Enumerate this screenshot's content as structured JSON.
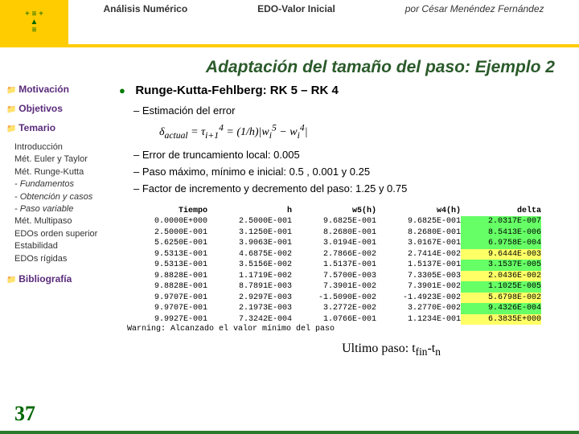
{
  "header": {
    "course": "Análisis Numérico",
    "topic": "EDO-Valor Inicial",
    "author": "por César Menéndez Fernández"
  },
  "title": "Adaptación del tamaño del paso: Ejemplo 2",
  "sidebar": {
    "motivacion": "Motivación",
    "objetivos": "Objetivos",
    "temario": "Temario",
    "sub": {
      "intro": "Introducción",
      "euler": "Mét. Euler y Taylor",
      "rk": "Mét. Runge-Kutta",
      "fund": "- Fundamentos",
      "obt": "- Obtención y casos",
      "paso": "- Paso variable",
      "multi": "Mét. Multipaso",
      "ord": "EDOs orden superior",
      "estab": "Estabilidad",
      "rig": "EDOs rígidas"
    },
    "biblio": "Bibliografía"
  },
  "content": {
    "rk_title": "Runge-Kutta-Fehlberg: RK 5 – RK 4",
    "est": "Estimación del error",
    "formula": "δactual = τi+1⁴ = (1/h)|wi⁵ − wi⁴|",
    "trunc": "Error de truncamiento local: 0.005",
    "paso": "Paso máximo, mínimo e inicial: 0.5 , 0.001 y 0.25",
    "factor": "Factor de incremento y decremento del paso: 1.25 y 0.75"
  },
  "table": {
    "headers": {
      "tiempo": "Tiempo",
      "h": "h",
      "w5": "w5(h)",
      "w4": "w4(h)",
      "delta": "delta"
    },
    "rows": [
      {
        "t": "0.0000E+000",
        "h": "2.5000E-001",
        "w5": "9.6825E-001",
        "w4": "9.6825E-001",
        "d": "2.0317E-007",
        "hl": "green"
      },
      {
        "t": "2.5000E-001",
        "h": "3.1250E-001",
        "w5": "8.2680E-001",
        "w4": "8.2680E-001",
        "d": "8.5413E-006",
        "hl": "green"
      },
      {
        "t": "5.6250E-001",
        "h": "3.9063E-001",
        "w5": "3.0194E-001",
        "w4": "3.0167E-001",
        "d": "6.9758E-004",
        "hl": "green"
      },
      {
        "t": "9.5313E-001",
        "h": "4.6875E-002",
        "w5": "2.7866E-002",
        "w4": "2.7414E-002",
        "d": "9.6444E-003",
        "hl": "yellow"
      },
      {
        "t": "9.5313E-001",
        "h": "3.5156E-002",
        "w5": "1.5137E-001",
        "w4": "1.5137E-001",
        "d": "3.1537E-005",
        "hl": "green"
      },
      {
        "t": "9.8828E-001",
        "h": "1.1719E-002",
        "w5": "7.5700E-003",
        "w4": "7.3305E-003",
        "d": "2.0436E-002",
        "hl": "yellow"
      },
      {
        "t": "9.8828E-001",
        "h": "8.7891E-003",
        "w5": "7.3901E-002",
        "w4": "7.3901E-002",
        "d": "1.1025E-005",
        "hl": "green"
      },
      {
        "t": "9.9707E-001",
        "h": "2.9297E-003",
        "w5": "-1.5090E-002",
        "w4": "-1.4923E-002",
        "d": "5.6798E-002",
        "hl": "yellow"
      },
      {
        "t": "9.9707E-001",
        "h": "2.1973E-003",
        "w5": "3.2772E-002",
        "w4": "3.2770E-002",
        "d": "9.4326E-004",
        "hl": "green"
      },
      {
        "t": "9.9927E-001",
        "h": "7.3242E-004",
        "w5": "1.0766E-001",
        "w4": "1.1234E-001",
        "d": "6.3835E+000",
        "hl": "yellow"
      }
    ],
    "warning": "Warning: Alcanzado el valor mínimo del paso"
  },
  "ultimo": "Ultimo paso: tfin-tn",
  "pagenum": "37",
  "colors": {
    "accent_yellow": "#ffcc00",
    "accent_green": "#2b7a2b",
    "hl_yellow": "#ffff66",
    "hl_green": "#66ff66"
  }
}
